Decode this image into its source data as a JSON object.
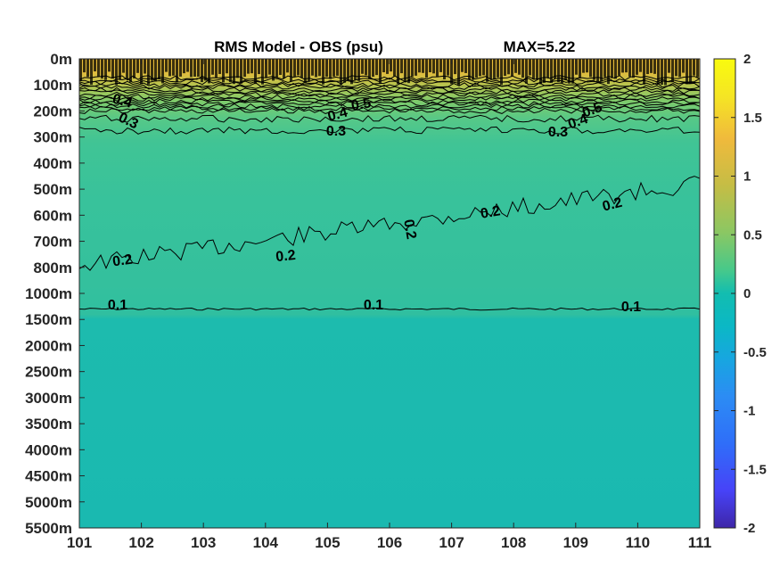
{
  "chart_data": {
    "type": "heatmap",
    "title": "RMS Model - OBS (psu)",
    "subtitle": "MAX=5.22",
    "xlabel": "",
    "ylabel": "",
    "x_ticks": [
      "101",
      "102",
      "103",
      "104",
      "105",
      "106",
      "107",
      "108",
      "109",
      "110",
      "111"
    ],
    "xlim": [
      101,
      111
    ],
    "depth_ticks": [
      "0m",
      "100m",
      "200m",
      "300m",
      "400m",
      "500m",
      "600m",
      "700m",
      "800m",
      "1000m",
      "1500m",
      "2000m",
      "2500m",
      "3000m",
      "3500m",
      "4000m",
      "4500m",
      "5000m",
      "5500m"
    ],
    "colorbar": {
      "ticks": [
        "2",
        "1.5",
        "1",
        "0.5",
        "0",
        "-0.5",
        "-1",
        "-1.5",
        "-2"
      ],
      "clim": [
        -2,
        2
      ],
      "colormap": "parula",
      "colors": [
        "#3e26a8",
        "#4743f8",
        "#2c80f9",
        "#17a6e0",
        "#0bbbb5",
        "#47c98a",
        "#a9c64b",
        "#f0ba3c",
        "#f9fb0e"
      ]
    },
    "field": {
      "layers": [
        {
          "depth_range": [
            "0m",
            "100m"
          ],
          "rms": ">1.0",
          "color": "#e8b83a"
        },
        {
          "depth_range": [
            "100m",
            "300m"
          ],
          "rms": "0.3-0.9",
          "color": "#58c88a"
        },
        {
          "depth_range": [
            "300m",
            "800m"
          ],
          "rms": "0.2-0.3",
          "color": "#38c29a"
        },
        {
          "depth_range": [
            "800m",
            "1500m"
          ],
          "rms": "0.1-0.2",
          "color": "#34bf9d"
        },
        {
          "depth_range": [
            "1500m",
            "5500m"
          ],
          "rms": "<0.1",
          "color": "#1cbab0"
        }
      ]
    },
    "contours": [
      {
        "level": 0.1,
        "labels": [
          "0.1",
          "0.1",
          "0.1"
        ]
      },
      {
        "level": 0.2,
        "labels": [
          "0.2",
          "0.2",
          "0.2",
          "0.2",
          "0.2"
        ]
      },
      {
        "level": 0.3,
        "labels": [
          "0.3",
          "0.3",
          "0.3"
        ]
      },
      {
        "level": 0.4,
        "labels": [
          "0.4",
          "0.4",
          "0.4"
        ]
      },
      {
        "level": 0.5,
        "labels": [
          "0.5",
          "0.5"
        ]
      }
    ],
    "grid": false
  }
}
